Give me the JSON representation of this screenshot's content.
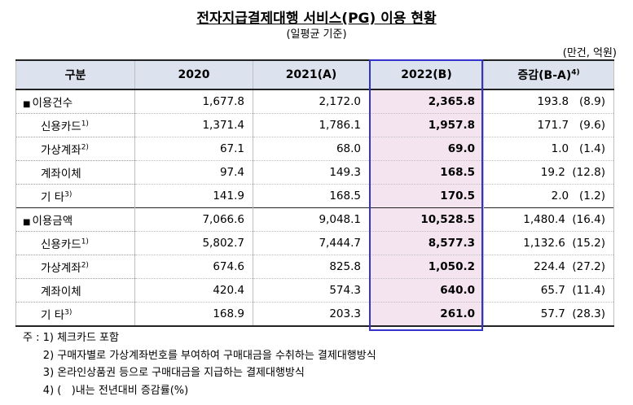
{
  "title": "전자지급결제대행 서비스(PG) 이용 현황",
  "subtitle": "(일평균 기준)",
  "unit": "(만건, 억원)",
  "header": {
    "category": "구분",
    "y2020": "2020",
    "y2021": "2021(A)",
    "y2022": "2022(B)",
    "change": "증감(B-A)",
    "change_note": "4)"
  },
  "rows": [
    {
      "label": "이용건수",
      "note": "",
      "v2020": "1,677.8",
      "v2021": "2,172.0",
      "v2022": "2,365.8",
      "change": "193.8   (8.9)"
    },
    {
      "label": "신용카드",
      "note": "1)",
      "v2020": "1,371.4",
      "v2021": "1,786.1",
      "v2022": "1,957.8",
      "change": "171.7   (9.6)"
    },
    {
      "label": "가상계좌",
      "note": "2)",
      "v2020": "67.1",
      "v2021": "68.0",
      "v2022": "69.0",
      "change": "1.0   (1.4)"
    },
    {
      "label": "계좌이체",
      "note": "",
      "v2020": "97.4",
      "v2021": "149.3",
      "v2022": "168.5",
      "change": "19.2  (12.8)"
    },
    {
      "label": "기     타",
      "note": "3)",
      "v2020": "141.9",
      "v2021": "168.5",
      "v2022": "170.5",
      "change": "2.0   (1.2)"
    },
    {
      "label": "이용금액",
      "note": "",
      "v2020": "7,066.6",
      "v2021": "9,048.1",
      "v2022": "10,528.5",
      "change": "1,480.4  (16.4)"
    },
    {
      "label": "신용카드",
      "note": "1)",
      "v2020": "5,802.7",
      "v2021": "7,444.7",
      "v2022": "8,577.3",
      "change": "1,132.6  (15.2)"
    },
    {
      "label": "가상계좌",
      "note": "2)",
      "v2020": "674.6",
      "v2021": "825.8",
      "v2022": "1,050.2",
      "change": "224.4  (27.2)"
    },
    {
      "label": "계좌이체",
      "note": "",
      "v2020": "420.4",
      "v2021": "574.3",
      "v2022": "640.0",
      "change": "65.7  (11.4)"
    },
    {
      "label": "기     타",
      "note": "3)",
      "v2020": "168.9",
      "v2021": "203.3",
      "v2022": "261.0",
      "change": "57.7  (28.3)"
    }
  ],
  "notes": [
    "주 : 1) 체크카드 포함",
    "      2) 구매자별로 가상계좌번호를 부여하여 구매대금을 수취하는 결제대행방식",
    "      3) 온라인상품권 등으로 구매대금을 지급하는 결제대행방식",
    "      4) (   )내는 전년대비 증감률(%)"
  ]
}
